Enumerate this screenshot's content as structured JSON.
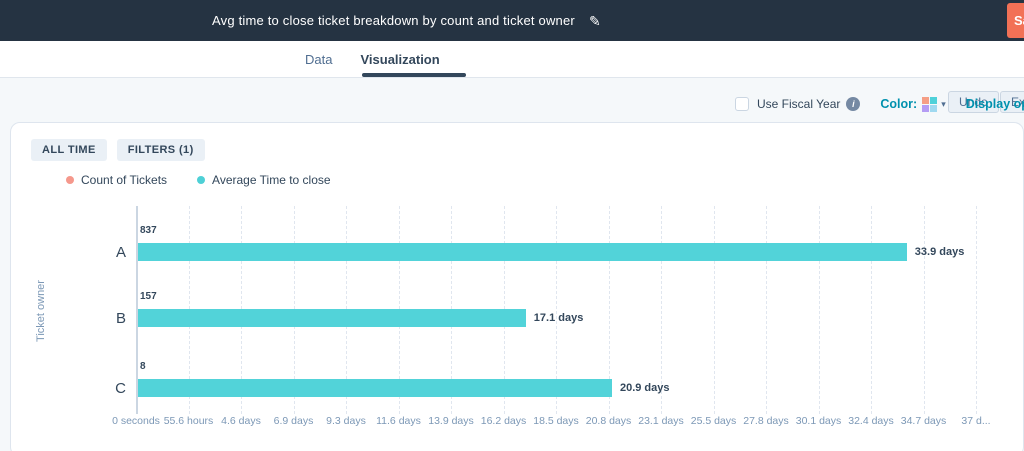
{
  "header": {
    "title": "Avg time to close ticket breakdown by count and ticket owner",
    "save_label": "Save"
  },
  "tabs": {
    "data_label": "Data",
    "visualization_label": "Visualization"
  },
  "toolbar": {
    "undo_label": "Undo",
    "export_label": "Export"
  },
  "options": {
    "use_fiscal_year_label": "Use Fiscal Year",
    "color_label": "Color:",
    "display_options_label": "Display options",
    "swatch_colors": [
      "#f59e85",
      "#4fd1d9",
      "#b49cf4",
      "#9fd9f0"
    ]
  },
  "report_toolbar": {
    "all_time_label": "ALL TIME",
    "filters_label": "FILTERS (1)"
  },
  "legend": {
    "items": [
      {
        "label": "Count of Tickets",
        "color": "#f5988c"
      },
      {
        "label": "Average Time to close",
        "color": "#4ed0d6"
      }
    ]
  },
  "chart_data": {
    "type": "bar",
    "orientation": "horizontal",
    "title": "Avg time to close ticket breakdown by count and ticket owner",
    "ylabel": "Ticket owner",
    "xlabel": "",
    "categories": [
      "A",
      "B",
      "C"
    ],
    "series": [
      {
        "name": "Count of Tickets",
        "color": "#f5988c",
        "unit": "tickets",
        "values": [
          837,
          157,
          8
        ]
      },
      {
        "name": "Average Time to close",
        "color": "#52d3d9",
        "unit": "days",
        "values": [
          33.9,
          17.1,
          20.9
        ],
        "value_labels": [
          "33.9 days",
          "17.1 days",
          "20.9 days"
        ]
      }
    ],
    "xlim_days": [
      0,
      37.04
    ],
    "x_ticks": [
      "0 seconds",
      "55.6 hours",
      "4.6 days",
      "6.9 days",
      "9.3 days",
      "11.6 days",
      "13.9 days",
      "16.2 days",
      "18.5 days",
      "20.8 days",
      "23.1 days",
      "25.5 days",
      "27.8 days",
      "30.1 days",
      "32.4 days",
      "34.7 days",
      "37 d..."
    ],
    "grid": "vertical-dashed",
    "legend_position": "top-left"
  }
}
